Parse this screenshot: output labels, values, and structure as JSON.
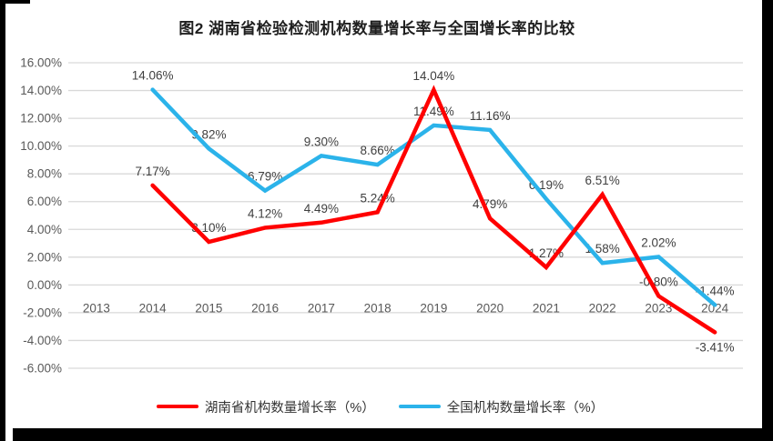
{
  "title": "图2 湖南省检验检测机构数量增长率与全国增长率的比较",
  "chart_data": {
    "type": "line",
    "title": "图2 湖南省检验检测机构数量增长率与全国增长率的比较",
    "categories": [
      "2013",
      "2014",
      "2015",
      "2016",
      "2017",
      "2018",
      "2019",
      "2020",
      "2021",
      "2022",
      "2023",
      "2024"
    ],
    "series": [
      {
        "name": "湖南省机构数量增长率（%）",
        "color": "#FF0000",
        "values": [
          null,
          7.17,
          3.1,
          4.12,
          4.49,
          5.24,
          14.04,
          4.79,
          1.27,
          6.51,
          -0.8,
          -3.41
        ]
      },
      {
        "name": "全国机构数量增长率（%）",
        "color": "#2BB3EA",
        "values": [
          null,
          14.06,
          9.82,
          6.79,
          9.3,
          8.66,
          11.49,
          11.16,
          6.19,
          1.58,
          2.02,
          -1.44
        ]
      }
    ],
    "ylim": [
      -6,
      16
    ],
    "ytick_step": 2,
    "ytick_labels": [
      "16.00%",
      "14.00%",
      "12.00%",
      "10.00%",
      "8.00%",
      "6.00%",
      "4.00%",
      "2.00%",
      "0.00%",
      "-2.00%",
      "-4.00%",
      "-6.00%"
    ],
    "data_labels": true,
    "grid": true,
    "gridline_color": "#D9D9D9",
    "axis_label_color": "#595959",
    "data_label_color": "#3F3F3F",
    "legend_position": "bottom"
  }
}
